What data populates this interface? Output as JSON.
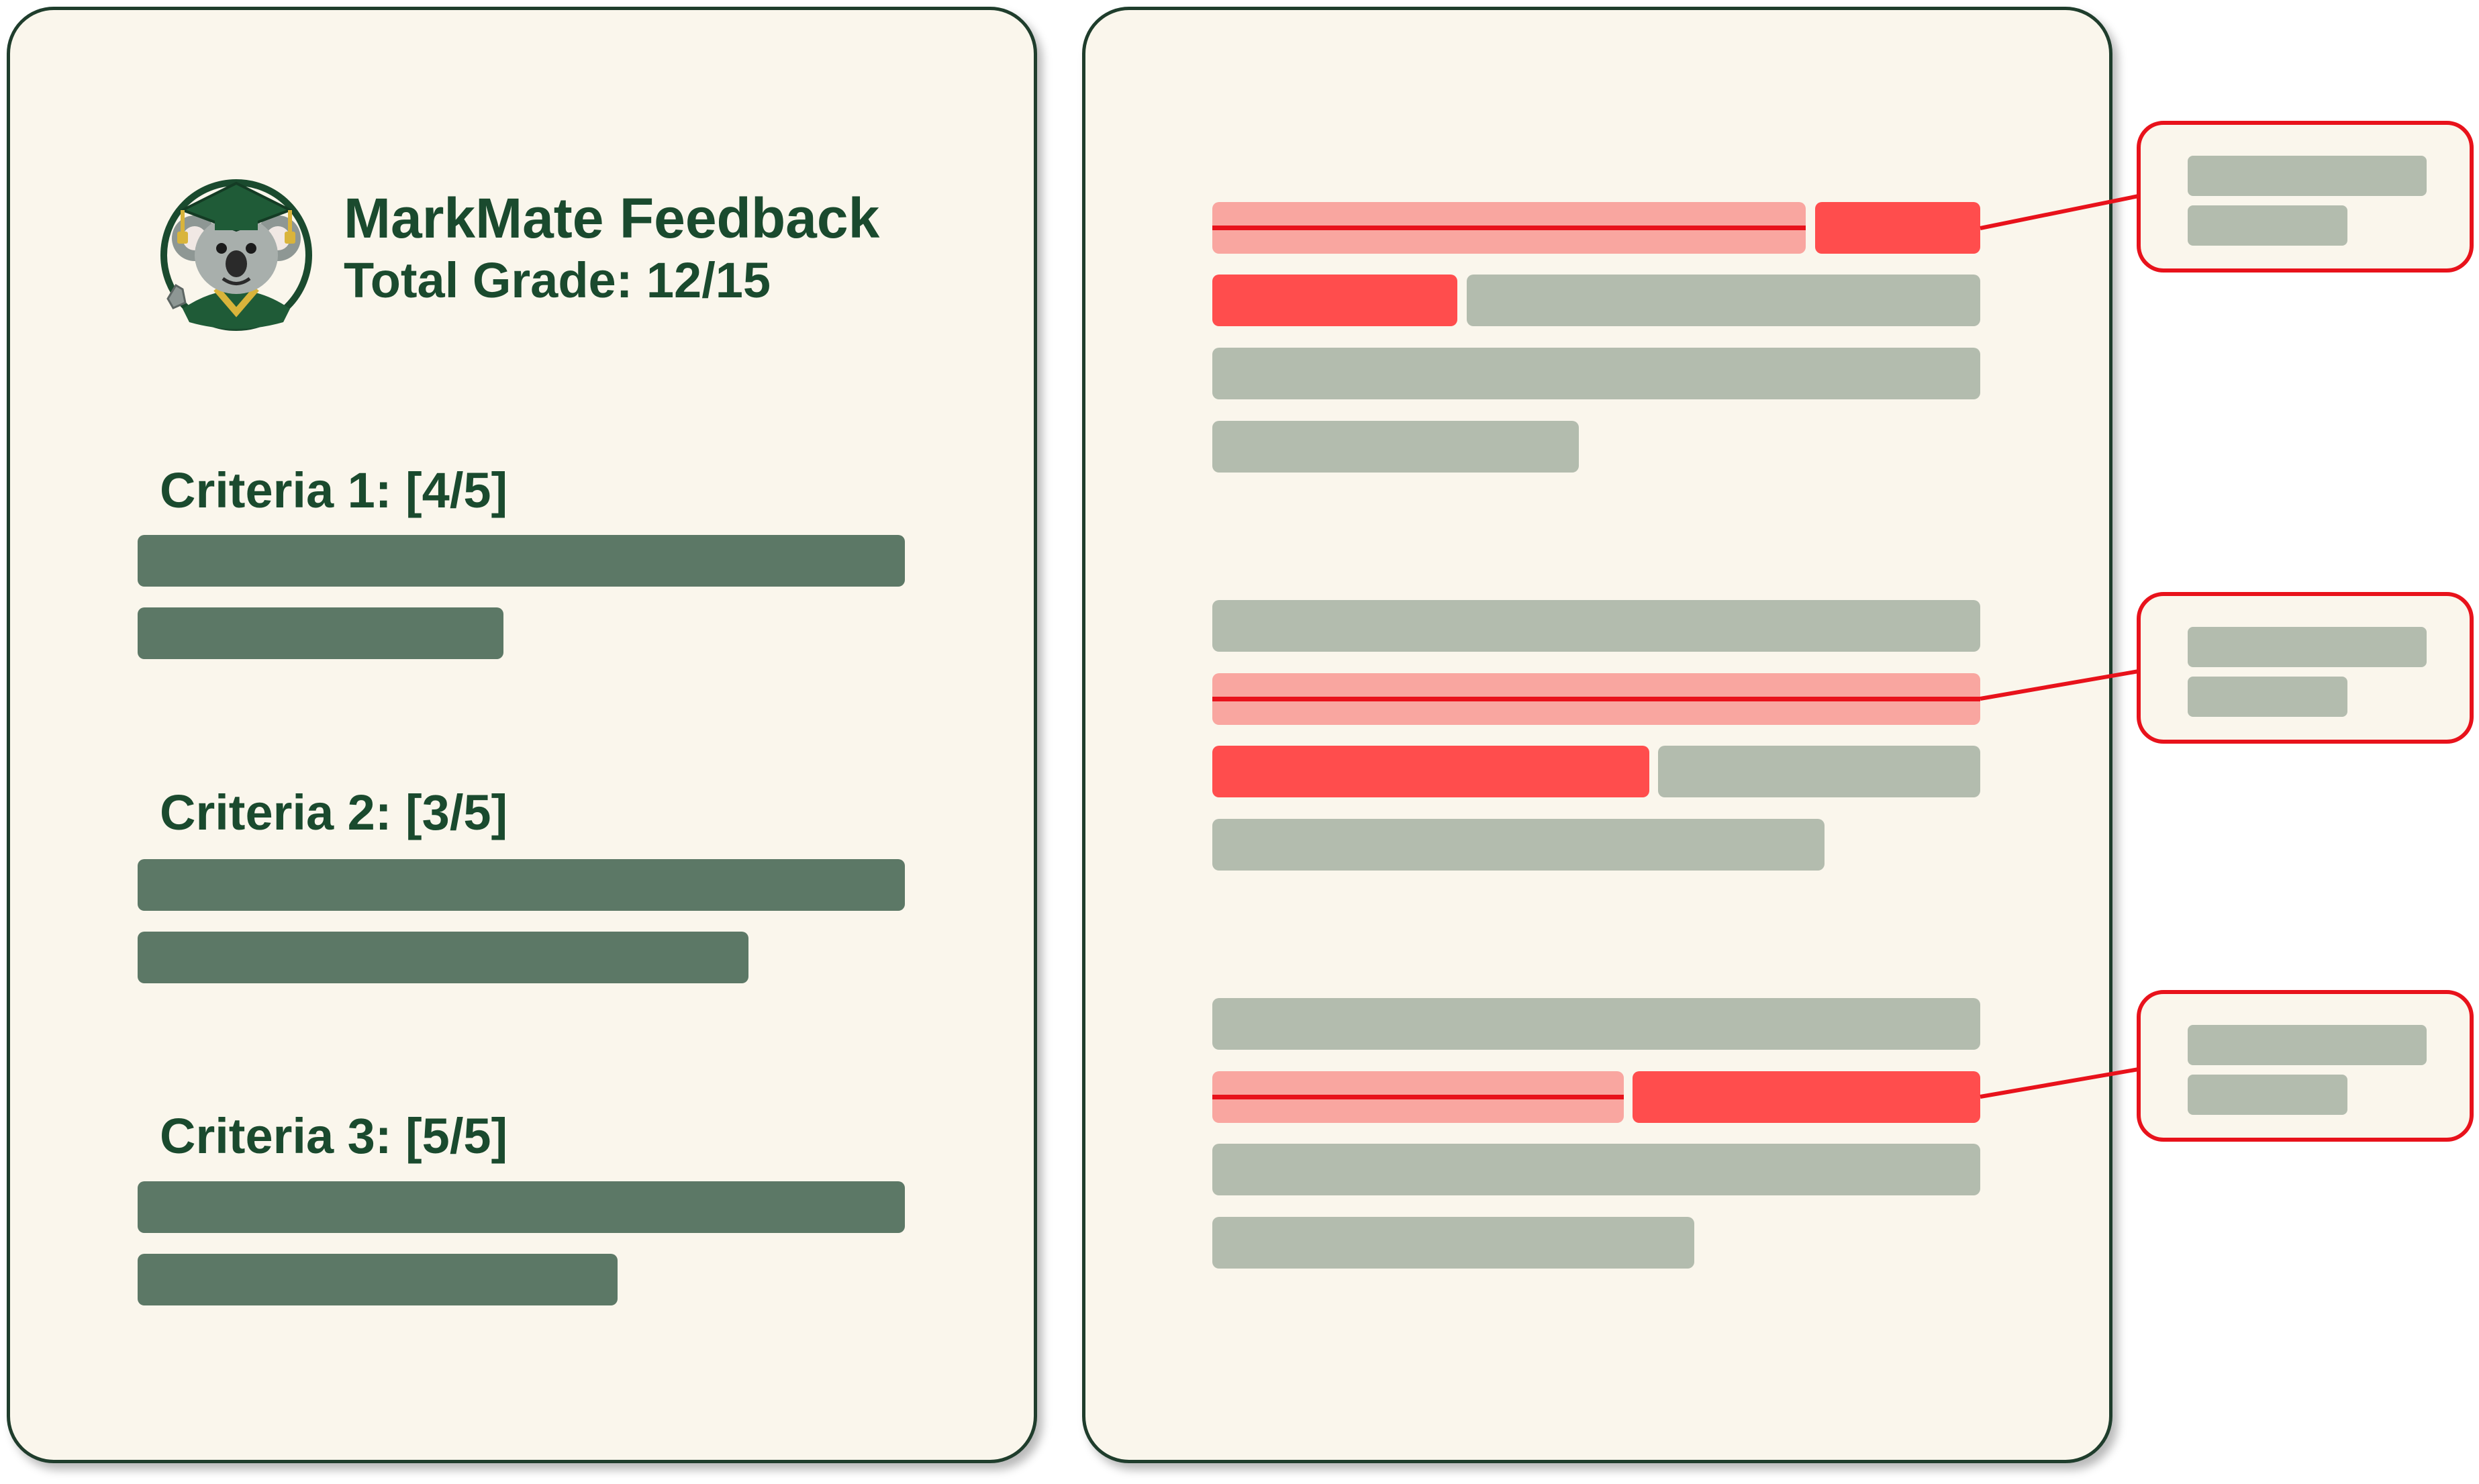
{
  "header": {
    "title": "MarkMate Feedback",
    "total_grade": "Total Grade: 12/15"
  },
  "criteria": [
    {
      "label": "Criteria 1: [4/5]"
    },
    {
      "label": "Criteria 2: [3/5]"
    },
    {
      "label": "Criteria 3: [5/5]"
    }
  ],
  "colors": {
    "panel_border": "#1f3d2c",
    "panel_fill": "#faf6ec",
    "criteria_bar": "#5c7866",
    "text_bar": "#b3bcae",
    "strike_highlight": "#f9a6a0",
    "error_highlight": "#ff4d4d",
    "annotation": "#e8121b",
    "heading": "#1a4a2e"
  },
  "icons": {
    "logo": "koala-graduate-mascot-icon"
  }
}
